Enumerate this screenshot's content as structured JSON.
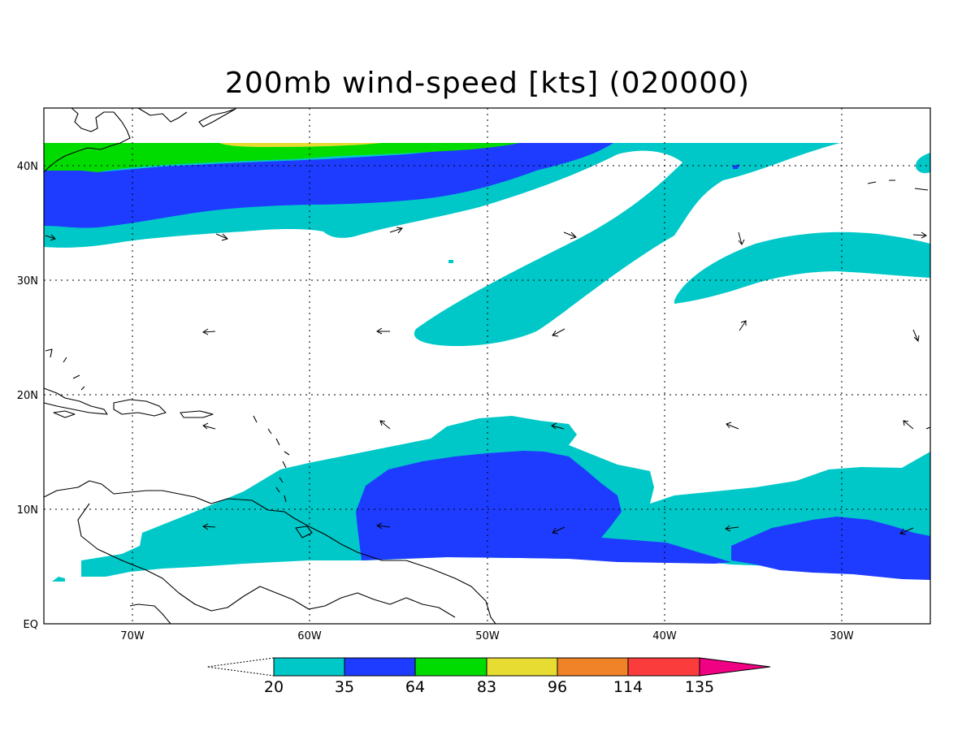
{
  "title": "200mb wind-speed [kts] (020000)",
  "colors": {
    "c20_35": "#00c8c8",
    "c35_64": "#1e3cff",
    "c64_83": "#00dc00",
    "c83_96": "#e6dc32",
    "c96_114": "#f08228",
    "c114_135": "#fa3c3c",
    "c135_plus": "#f00082",
    "land_outline": "#000000",
    "background": "#ffffff"
  },
  "axes": {
    "x_ticks": [
      "70W",
      "60W",
      "50W",
      "40W",
      "30W"
    ],
    "y_ticks": [
      "EQ",
      "10N",
      "20N",
      "30N",
      "40N"
    ]
  },
  "colorbar": {
    "labels": [
      "20",
      "35",
      "64",
      "83",
      "96",
      "114",
      "135"
    ]
  }
}
